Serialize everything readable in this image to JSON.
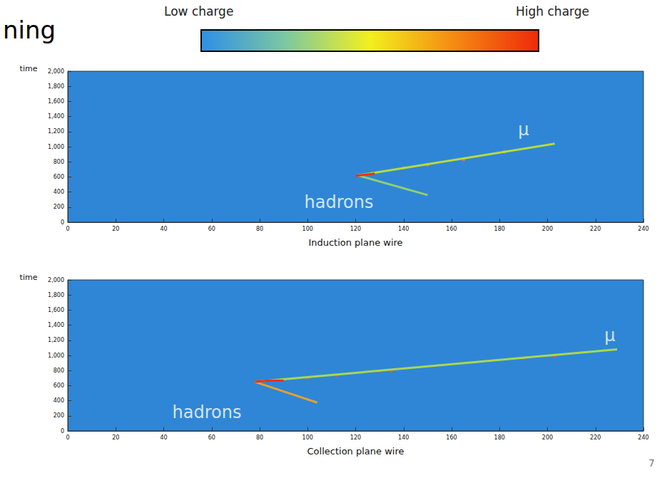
{
  "header": {
    "text": "ning",
    "page": "7"
  },
  "colorbar": {
    "low_label": "Low charge",
    "high_label": "High charge",
    "colors": [
      "#2e8fe6",
      "#7cc8a0",
      "#f2f01e",
      "#f58a12",
      "#ee2a0a"
    ]
  },
  "chart_data": [
    {
      "type": "line",
      "y_label": "time",
      "x_label": "Induction plane wire",
      "xlim": [
        0,
        240
      ],
      "xticks": [
        0,
        20,
        40,
        60,
        80,
        100,
        120,
        140,
        160,
        180,
        200,
        220,
        240
      ],
      "ylim": [
        0,
        2000
      ],
      "yticks": [
        0,
        200,
        400,
        600,
        800,
        1000,
        1200,
        1400,
        1600,
        1800,
        2000
      ],
      "series": [
        {
          "color": "#b5dc3c",
          "x": [
            121,
            203
          ],
          "values": [
            620,
            1040
          ]
        },
        {
          "color": "#8fd070",
          "x": [
            121,
            150
          ],
          "values": [
            620,
            360
          ]
        },
        {
          "color": "#e8331a",
          "x": [
            120,
            124,
            128
          ],
          "values": [
            615,
            630,
            645
          ]
        },
        {
          "type": "scatter",
          "marker": "circle",
          "color": "#f08020",
          "x": [
            140,
            150,
            165,
            182
          ],
          "values": [
            720,
            760,
            830,
            930
          ]
        }
      ],
      "annotations": [
        {
          "text": "μ",
          "x": 190,
          "y": 1230
        },
        {
          "text": "hadrons",
          "x": 113,
          "y": 260
        }
      ]
    },
    {
      "type": "line",
      "y_label": "time",
      "x_label": "Collection plane wire",
      "xlim": [
        0,
        240
      ],
      "xticks": [
        0,
        20,
        40,
        60,
        80,
        100,
        120,
        140,
        160,
        180,
        200,
        220,
        240
      ],
      "ylim": [
        0,
        2000
      ],
      "yticks": [
        0,
        200,
        400,
        600,
        800,
        1000,
        1200,
        1400,
        1600,
        1800,
        2000
      ],
      "series": [
        {
          "color": "#a8d850",
          "x": [
            78,
            229
          ],
          "values": [
            650,
            1080
          ]
        },
        {
          "color": "#e0a030",
          "x": [
            78,
            104
          ],
          "values": [
            650,
            375
          ]
        },
        {
          "color": "#e8331a",
          "x": [
            78,
            84,
            90
          ],
          "values": [
            650,
            668,
            665
          ]
        },
        {
          "type": "scatter",
          "marker": "circle",
          "color": "#ee5520",
          "x": [
            100,
            112,
            130,
            135,
            190,
            203
          ],
          "values": [
            705,
            735,
            790,
            795,
            960,
            985
          ]
        }
      ],
      "annotations": [
        {
          "text": "μ",
          "x": 226,
          "y": 1260
        },
        {
          "text": "hadrons",
          "x": 58,
          "y": 250
        }
      ]
    }
  ]
}
